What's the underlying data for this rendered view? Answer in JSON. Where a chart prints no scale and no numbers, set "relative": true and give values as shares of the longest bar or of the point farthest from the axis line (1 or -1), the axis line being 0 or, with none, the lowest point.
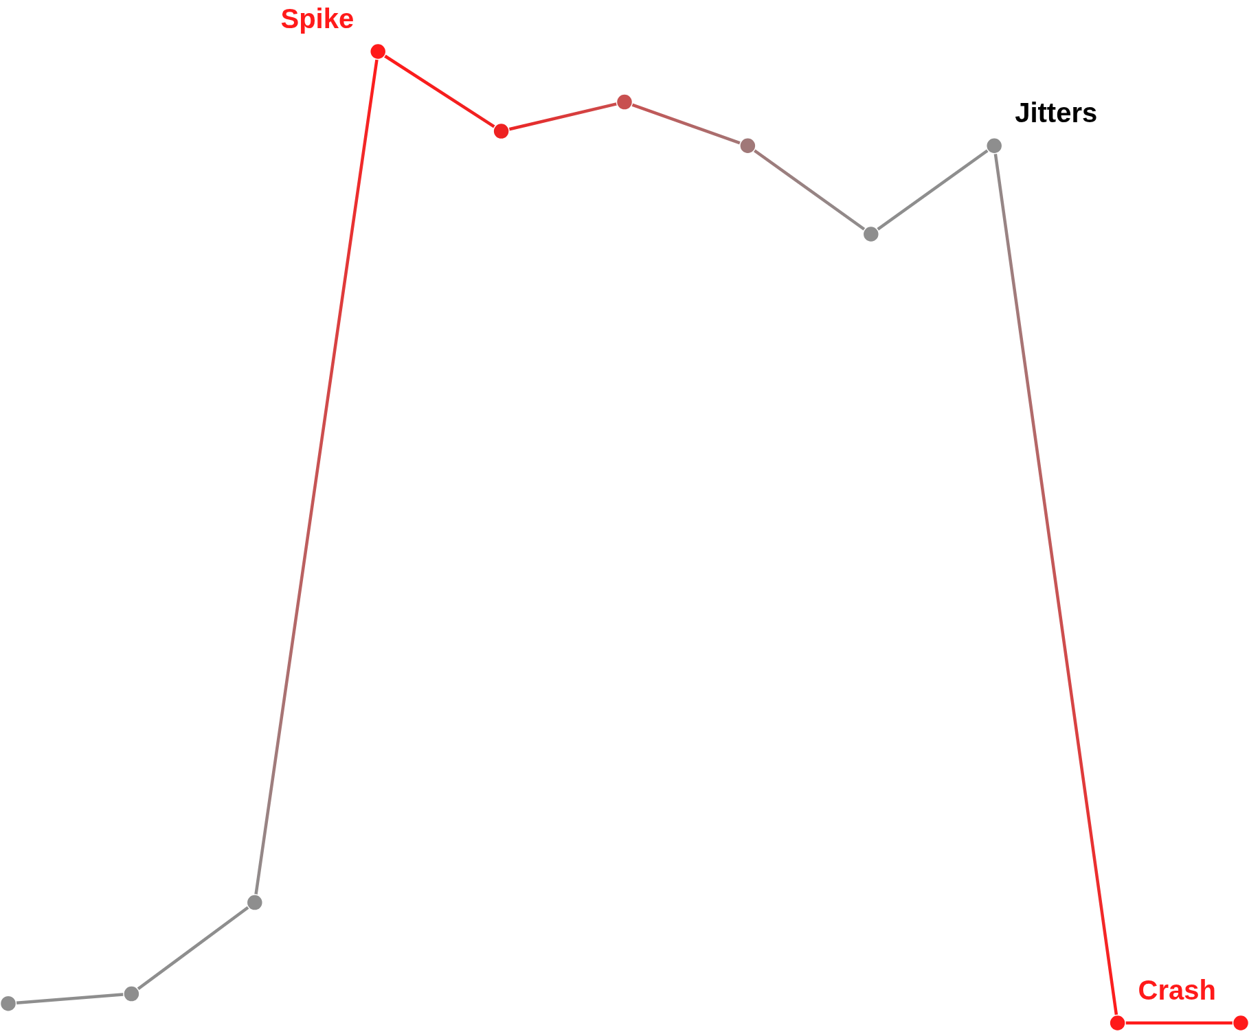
{
  "chart_data": {
    "type": "line",
    "relative": true,
    "marker": "circle",
    "line_style": "solid",
    "categories": [
      null,
      null,
      null,
      null,
      null,
      null,
      null,
      null,
      null,
      null,
      null
    ],
    "series": [
      {
        "color": "#8e8e8e",
        "values": [
          0.02,
          0.03,
          0.124,
          1,
          0.918,
          0.948,
          0.903,
          0.812,
          0.903,
          0,
          0
        ],
        "colors": [
          "#8e8e8e",
          "#8e8e8e",
          "#8e8e8e",
          "#ff1a1a",
          "#ee2222",
          "#c85050",
          "#a07878",
          "#8e8e8e",
          "#8e8e8e",
          "#ff1a1a",
          "#ff1a1a"
        ]
      }
    ],
    "annotations": [
      "Spike",
      "Jitters",
      "Crash"
    ]
  }
}
